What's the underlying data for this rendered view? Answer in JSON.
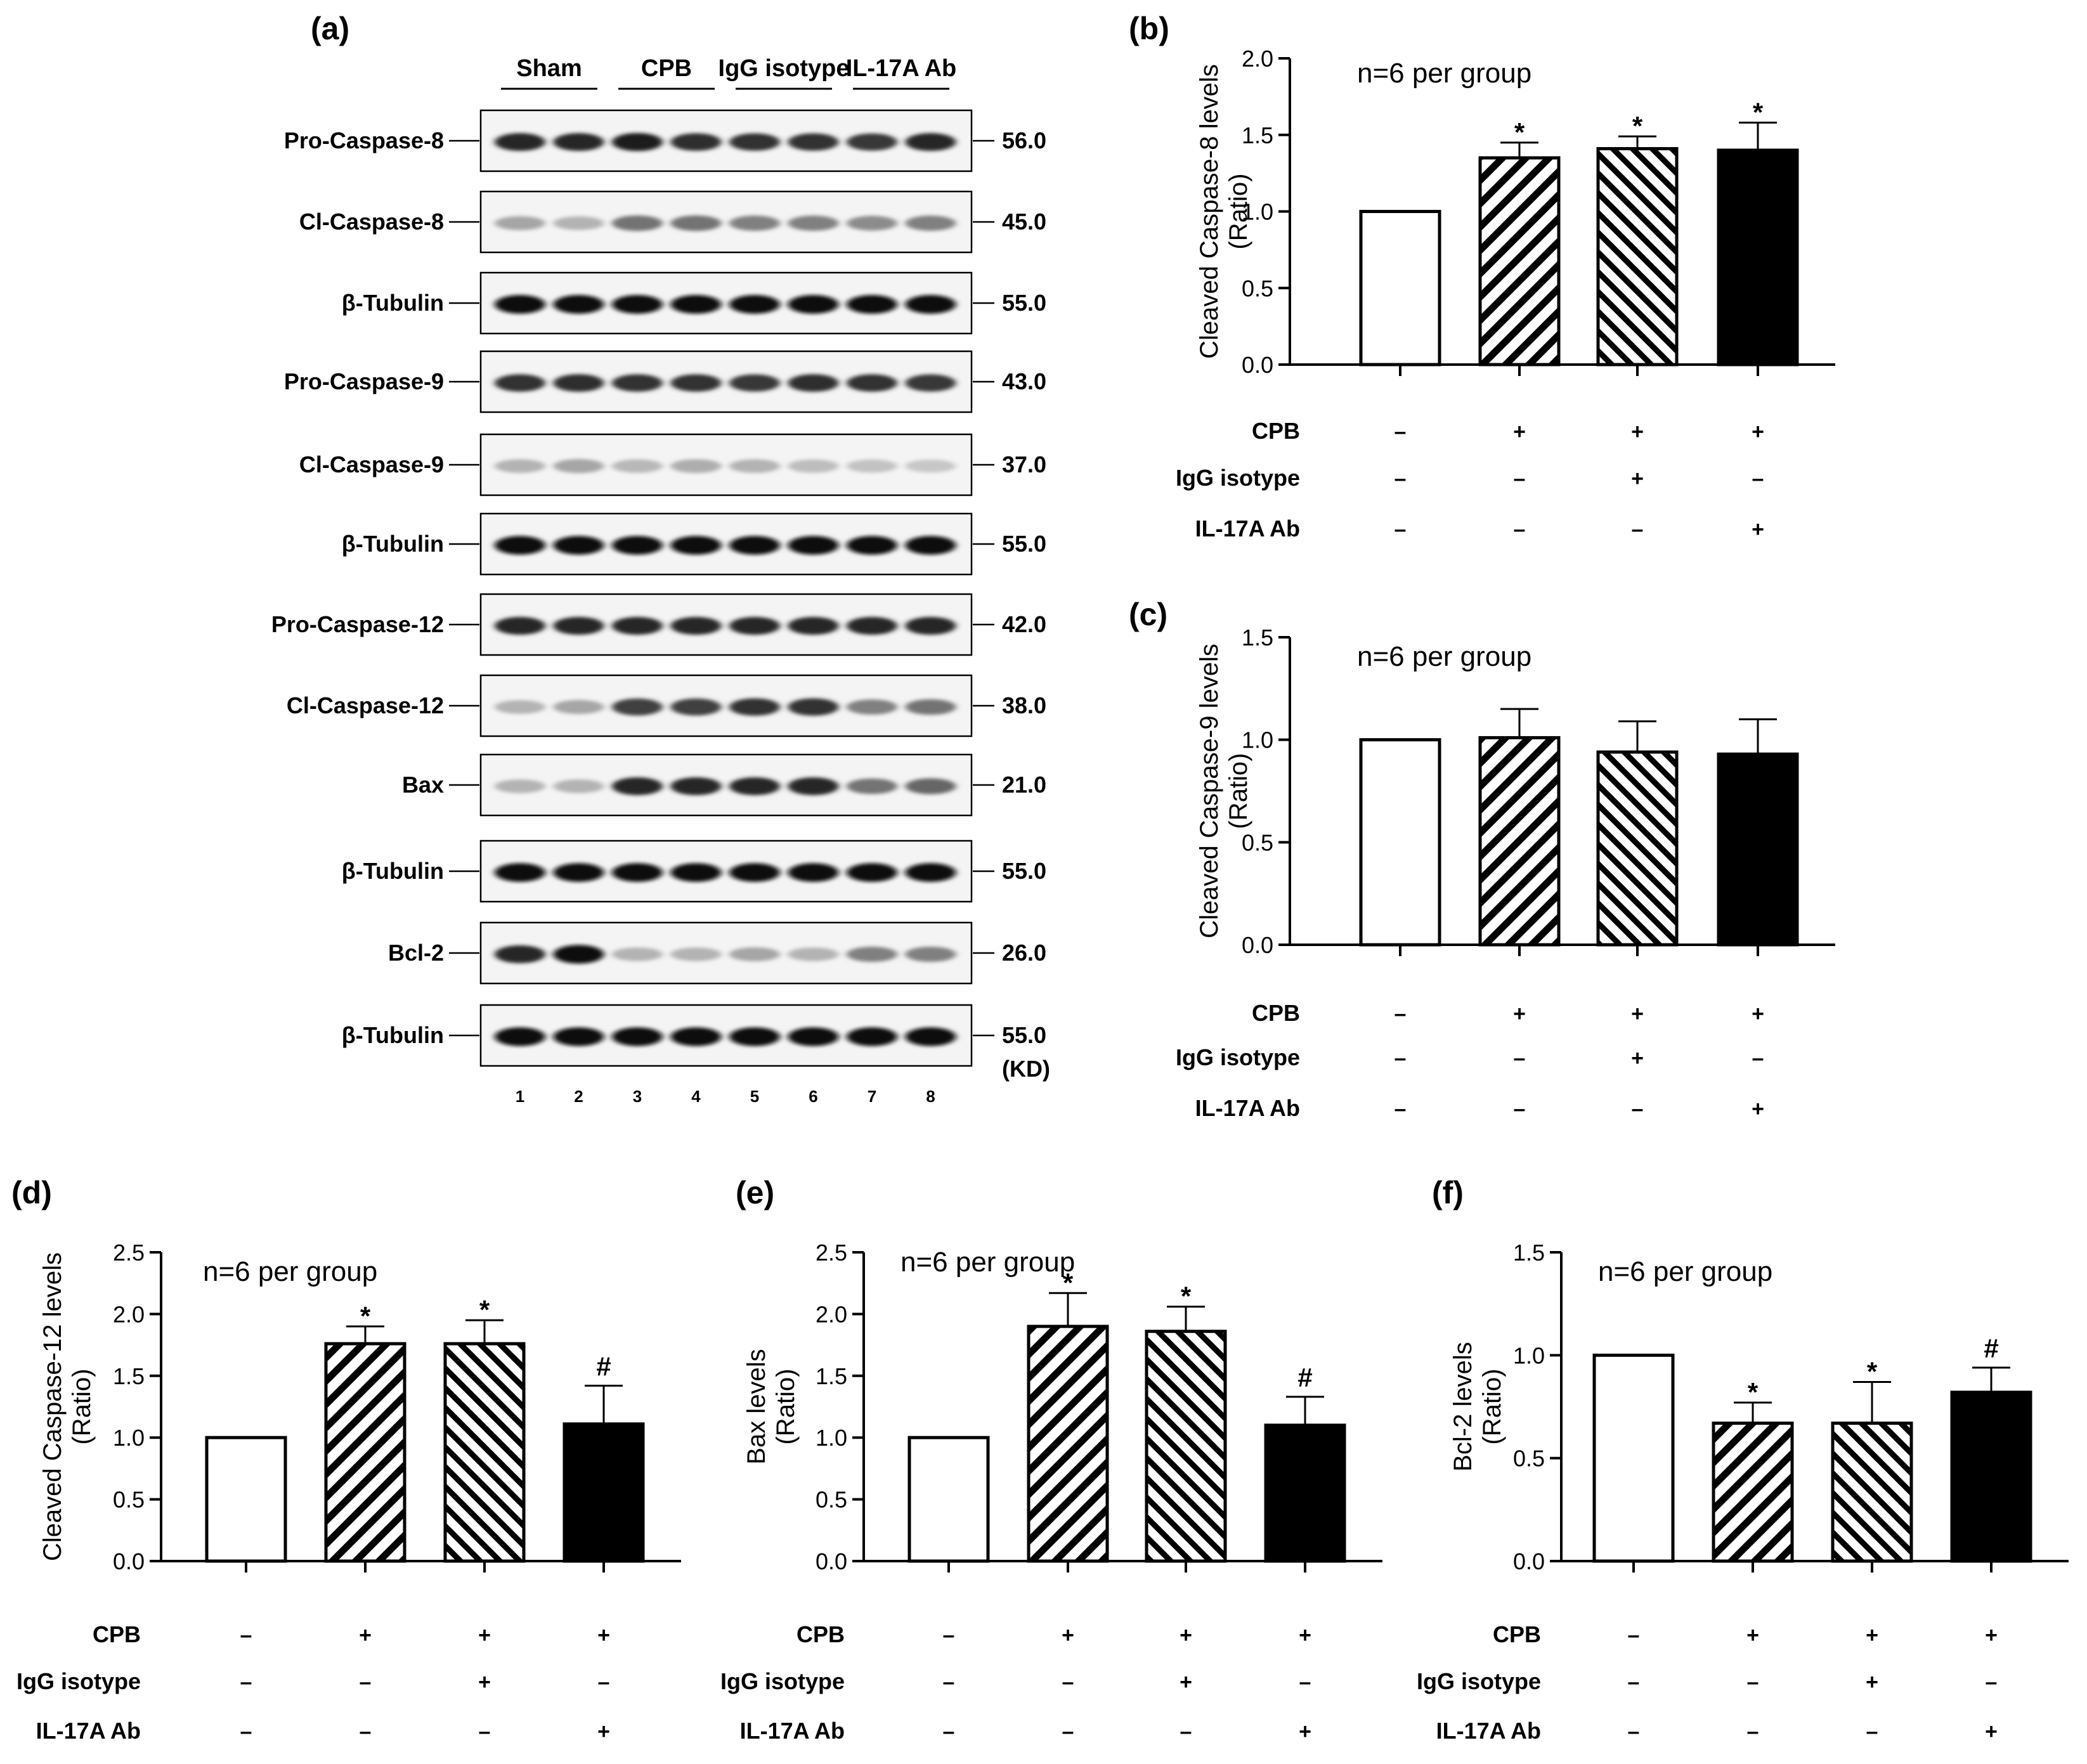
{
  "western_blot": {
    "panel_label": "(a)",
    "groups": [
      "Sham",
      "CPB",
      "IgG isotype",
      "IL-17A Ab"
    ],
    "lanes": [
      "1",
      "2",
      "3",
      "4",
      "5",
      "6",
      "7",
      "8"
    ],
    "unit": "(KD)",
    "rows": [
      {
        "label": "Pro-Caspase-8",
        "mw": "56.0",
        "intensity": [
          0.85,
          0.85,
          0.88,
          0.82,
          0.8,
          0.8,
          0.78,
          0.85
        ]
      },
      {
        "label": "Cl-Caspase-8",
        "mw": "45.0",
        "intensity": [
          0.35,
          0.3,
          0.55,
          0.55,
          0.5,
          0.5,
          0.45,
          0.5
        ]
      },
      {
        "label": "β-Tubulin",
        "mw": "55.0",
        "intensity": [
          0.95,
          0.95,
          0.95,
          0.95,
          0.95,
          0.95,
          0.95,
          0.95
        ]
      },
      {
        "label": "Pro-Caspase-9",
        "mw": "43.0",
        "intensity": [
          0.8,
          0.82,
          0.8,
          0.8,
          0.78,
          0.82,
          0.8,
          0.78
        ]
      },
      {
        "label": "Cl-Caspase-9",
        "mw": "37.0",
        "intensity": [
          0.3,
          0.35,
          0.28,
          0.32,
          0.3,
          0.26,
          0.24,
          0.22
        ]
      },
      {
        "label": "β-Tubulin",
        "mw": "55.0",
        "intensity": [
          0.95,
          0.95,
          0.95,
          0.95,
          0.95,
          0.95,
          0.95,
          0.95
        ]
      },
      {
        "label": "Pro-Caspase-12",
        "mw": "42.0",
        "intensity": [
          0.85,
          0.85,
          0.85,
          0.85,
          0.85,
          0.85,
          0.85,
          0.85
        ]
      },
      {
        "label": "Cl-Caspase-12",
        "mw": "38.0",
        "intensity": [
          0.3,
          0.35,
          0.75,
          0.75,
          0.8,
          0.8,
          0.5,
          0.55
        ]
      },
      {
        "label": "Bax",
        "mw": "21.0",
        "intensity": [
          0.3,
          0.3,
          0.85,
          0.85,
          0.85,
          0.85,
          0.55,
          0.6
        ]
      },
      {
        "label": "β-Tubulin",
        "mw": "55.0",
        "intensity": [
          0.95,
          0.95,
          0.95,
          0.95,
          0.95,
          0.95,
          0.95,
          0.95
        ]
      },
      {
        "label": "Bcl-2",
        "mw": "26.0",
        "intensity": [
          0.85,
          0.95,
          0.3,
          0.3,
          0.35,
          0.3,
          0.5,
          0.5
        ]
      },
      {
        "label": "β-Tubulin",
        "mw": "55.0",
        "intensity": [
          0.95,
          0.95,
          0.95,
          0.95,
          0.95,
          0.95,
          0.95,
          0.95
        ]
      }
    ]
  },
  "conditions": {
    "rows": [
      {
        "name": "CPB",
        "symbols": [
          "–",
          "+",
          "+",
          "+"
        ]
      },
      {
        "name": "IgG isotype",
        "symbols": [
          "–",
          "–",
          "+",
          "–"
        ]
      },
      {
        "name": "IL-17A Ab",
        "symbols": [
          "–",
          "–",
          "–",
          "+"
        ]
      }
    ]
  },
  "chart_data": [
    {
      "panel": "(b)",
      "type": "bar",
      "ylabel": "Cleaved Caspase-8 levels",
      "ylabel2": "(Ratio)",
      "ylim": [
        0,
        2.0
      ],
      "yticks": [
        "0.0",
        "0.5",
        "1.0",
        "1.5",
        "2.0"
      ],
      "note": "n=6 per group",
      "categories": [
        "Sham",
        "CPB",
        "IgG isotype",
        "IL-17A Ab"
      ],
      "values": [
        1.0,
        1.35,
        1.41,
        1.4
      ],
      "errors": [
        0,
        0.1,
        0.08,
        0.18
      ],
      "sig": [
        "",
        "*",
        "*",
        "*"
      ]
    },
    {
      "panel": "(c)",
      "type": "bar",
      "ylabel": "Cleaved Caspase-9 levels",
      "ylabel2": "(Ratio)",
      "ylim": [
        0,
        1.5
      ],
      "yticks": [
        "0.0",
        "0.5",
        "1.0",
        "1.5"
      ],
      "note": "n=6 per group",
      "categories": [
        "Sham",
        "CPB",
        "IgG isotype",
        "IL-17A Ab"
      ],
      "values": [
        1.0,
        1.01,
        0.94,
        0.93
      ],
      "errors": [
        0,
        0.14,
        0.15,
        0.17
      ],
      "sig": [
        "",
        "",
        "",
        ""
      ]
    },
    {
      "panel": "(d)",
      "type": "bar",
      "ylabel": "Cleaved Caspase-12 levels",
      "ylabel2": "(Ratio)",
      "ylim": [
        0,
        2.5
      ],
      "yticks": [
        "0.0",
        "0.5",
        "1.0",
        "1.5",
        "2.0",
        "2.5"
      ],
      "note": "n=6 per group",
      "categories": [
        "Sham",
        "CPB",
        "IgG isotype",
        "IL-17A Ab"
      ],
      "values": [
        1.0,
        1.76,
        1.76,
        1.11
      ],
      "errors": [
        0,
        0.14,
        0.19,
        0.31
      ],
      "sig": [
        "",
        "*",
        "*",
        "#"
      ]
    },
    {
      "panel": "(e)",
      "type": "bar",
      "ylabel": "Bax levels",
      "ylabel2": "(Ratio)",
      "ylim": [
        0,
        2.5
      ],
      "yticks": [
        "0.0",
        "0.5",
        "1.0",
        "1.5",
        "2.0",
        "2.5"
      ],
      "note": "n=6 per group",
      "categories": [
        "Sham",
        "CPB",
        "IgG isotype",
        "IL-17A Ab"
      ],
      "values": [
        1.0,
        1.9,
        1.86,
        1.1
      ],
      "errors": [
        0,
        0.27,
        0.2,
        0.23
      ],
      "sig": [
        "",
        "*",
        "*",
        "#"
      ]
    },
    {
      "panel": "(f)",
      "type": "bar",
      "ylabel": "Bcl-2 levels",
      "ylabel2": "(Ratio)",
      "ylim": [
        0,
        1.5
      ],
      "yticks": [
        "0.0",
        "0.5",
        "1.0",
        "1.5"
      ],
      "note": "n=6 per group",
      "categories": [
        "Sham",
        "CPB",
        "IgG isotype",
        "IL-17A Ab"
      ],
      "values": [
        1.0,
        0.67,
        0.67,
        0.82
      ],
      "errors": [
        0,
        0.1,
        0.2,
        0.12
      ],
      "sig": [
        "",
        "*",
        "*",
        "#"
      ]
    }
  ]
}
